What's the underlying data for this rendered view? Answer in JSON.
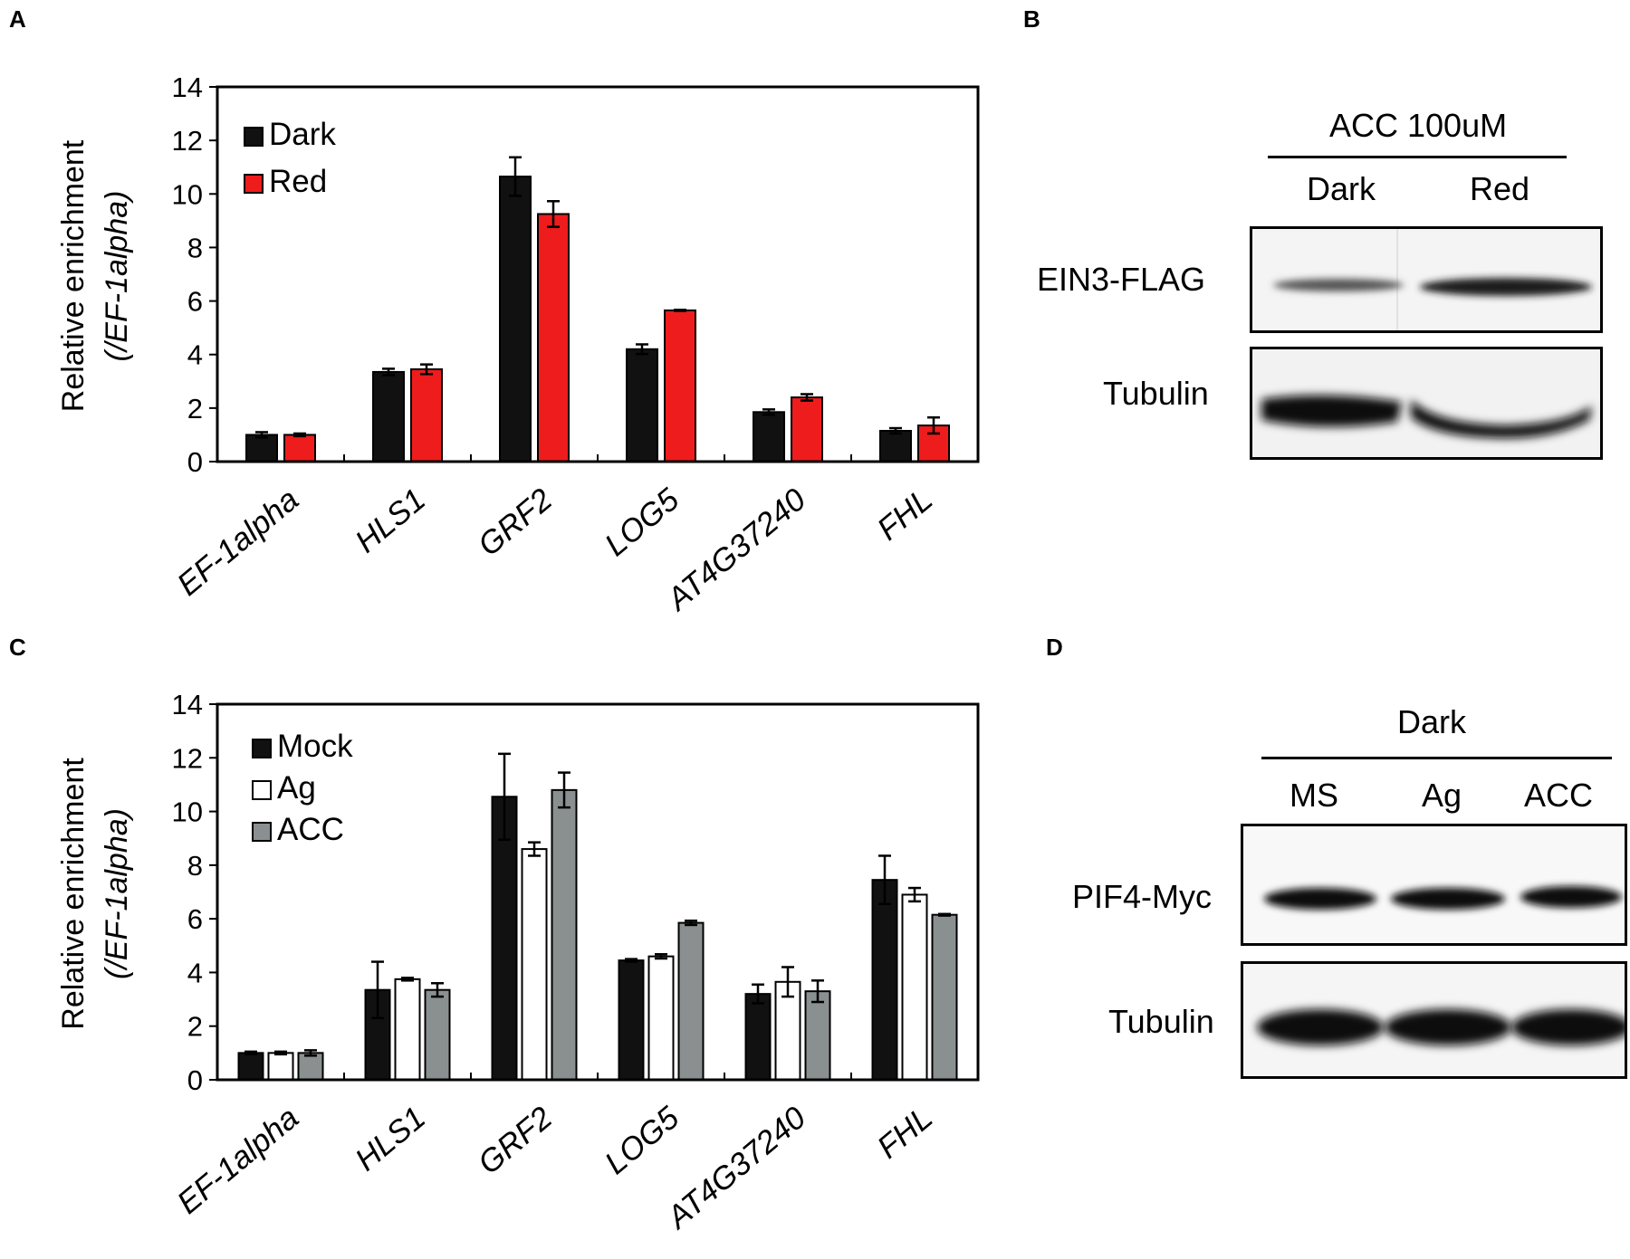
{
  "panels": {
    "a": "A",
    "b": "B",
    "c": "C",
    "d": "D"
  },
  "chart_data": [
    {
      "id": "A",
      "type": "bar",
      "ylabel_line1": "Relative enrichment",
      "ylabel_line2": "(/EF-1alpha)",
      "ylim": [
        0,
        14
      ],
      "yticks": [
        0,
        2,
        4,
        6,
        8,
        10,
        12,
        14
      ],
      "legend_position": "top-left",
      "categories": [
        "EF-1alpha",
        "HLS1",
        "GRF2",
        "LOG5",
        "AT4G37240",
        "FHL"
      ],
      "series": [
        {
          "name": "Dark",
          "color": "#111111",
          "values": [
            1.0,
            3.35,
            10.65,
            4.2,
            1.85,
            1.15
          ],
          "errors": [
            0.1,
            0.12,
            0.72,
            0.18,
            0.1,
            0.1
          ]
        },
        {
          "name": "Red",
          "color": "#ee1c1c",
          "values": [
            1.0,
            3.45,
            9.25,
            5.65,
            2.4,
            1.35
          ],
          "errors": [
            0.05,
            0.18,
            0.48,
            0.02,
            0.12,
            0.3
          ]
        }
      ]
    },
    {
      "id": "C",
      "type": "bar",
      "ylabel_line1": "Relative enrichment",
      "ylabel_line2": "(/EF-1alpha)",
      "ylim": [
        0,
        14
      ],
      "yticks": [
        0,
        2,
        4,
        6,
        8,
        10,
        12,
        14
      ],
      "legend_position": "top-left",
      "categories": [
        "EF-1alpha",
        "HLS1",
        "GRF2",
        "LOG5",
        "AT4G37240",
        "FHL"
      ],
      "series": [
        {
          "name": "Mock",
          "color": "#111111",
          "values": [
            1.0,
            3.35,
            10.55,
            4.45,
            3.2,
            7.45
          ],
          "errors": [
            0.05,
            1.05,
            1.6,
            0.05,
            0.35,
            0.9
          ]
        },
        {
          "name": "Ag",
          "color": "#ffffff",
          "values": [
            1.0,
            3.75,
            8.6,
            4.6,
            3.65,
            6.9
          ],
          "errors": [
            0.05,
            0.05,
            0.25,
            0.08,
            0.55,
            0.25
          ]
        },
        {
          "name": "ACC",
          "color": "#8a908f",
          "values": [
            1.0,
            3.35,
            10.8,
            5.85,
            3.3,
            6.15
          ],
          "errors": [
            0.1,
            0.25,
            0.65,
            0.08,
            0.4,
            0.03
          ]
        }
      ]
    }
  ],
  "blot_b": {
    "header": "ACC 100uM",
    "lanes": [
      "Dark",
      "Red"
    ],
    "rows": [
      "EIN3-FLAG",
      "Tubulin"
    ]
  },
  "blot_d": {
    "header": "Dark",
    "lanes": [
      "MS",
      "Ag",
      "ACC"
    ],
    "rows": [
      "PIF4-Myc",
      "Tubulin"
    ]
  }
}
